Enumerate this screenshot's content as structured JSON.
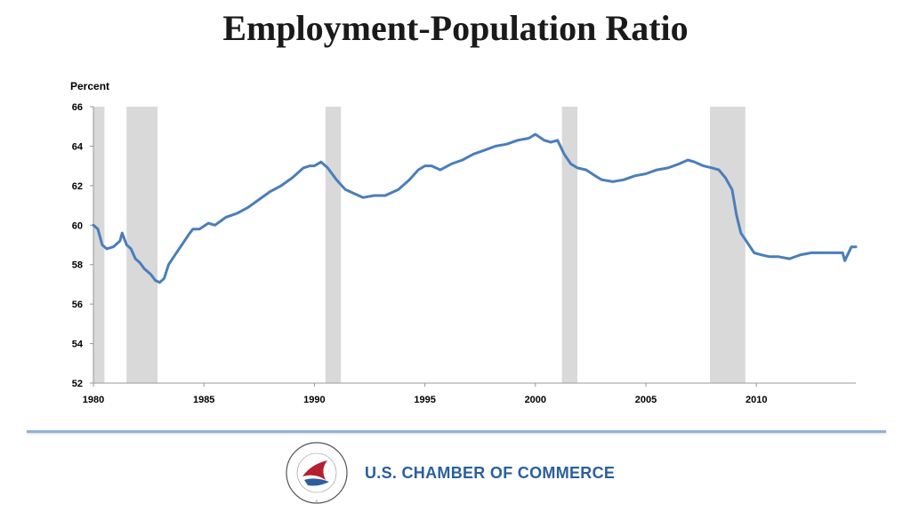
{
  "title": "Employment-Population Ratio",
  "footer": {
    "brand": "U.S. CHAMBER OF COMMERCE",
    "seal_text": "THE SPIRIT OF ENTERPRISE · U.S. CHAMBER OF COMMERCE"
  },
  "colors": {
    "line": "#4a7ebb",
    "recession": "#d9d9d9",
    "brand": "#2a5f9e",
    "divider": "#8fb3d9"
  },
  "chart_data": {
    "type": "line",
    "title": "Employment-Population Ratio",
    "ylabel": "Percent",
    "xlabel": "",
    "xlim": [
      1980,
      2014.5
    ],
    "ylim": [
      52,
      66
    ],
    "xticks": [
      1980,
      1985,
      1990,
      1995,
      2000,
      2005,
      2010
    ],
    "yticks": [
      52,
      54,
      56,
      58,
      60,
      62,
      64,
      66
    ],
    "recessions": [
      [
        1980.0,
        1980.5
      ],
      [
        1981.5,
        1982.9
      ],
      [
        1990.5,
        1991.2
      ],
      [
        2001.2,
        2001.9
      ],
      [
        2007.9,
        2009.5
      ]
    ],
    "series": [
      {
        "name": "Employment-Population Ratio",
        "x": [
          1980.0,
          1980.2,
          1980.4,
          1980.6,
          1980.9,
          1981.2,
          1981.3,
          1981.5,
          1981.7,
          1981.9,
          1982.1,
          1982.3,
          1982.6,
          1982.8,
          1983.0,
          1983.2,
          1983.4,
          1983.7,
          1984.0,
          1984.3,
          1984.5,
          1984.8,
          1985.2,
          1985.5,
          1986.0,
          1986.5,
          1987.0,
          1987.5,
          1988.0,
          1988.5,
          1989.0,
          1989.5,
          1989.8,
          1990.0,
          1990.3,
          1990.6,
          1991.0,
          1991.4,
          1991.8,
          1992.2,
          1992.7,
          1993.2,
          1993.8,
          1994.3,
          1994.7,
          1995.0,
          1995.3,
          1995.7,
          1996.2,
          1996.7,
          1997.2,
          1997.7,
          1998.2,
          1998.7,
          1999.2,
          1999.7,
          2000.0,
          2000.4,
          2000.7,
          2001.0,
          2001.3,
          2001.6,
          2001.9,
          2002.3,
          2002.7,
          2003.0,
          2003.5,
          2004.0,
          2004.5,
          2005.0,
          2005.5,
          2006.0,
          2006.5,
          2006.9,
          2007.2,
          2007.6,
          2008.0,
          2008.3,
          2008.6,
          2008.9,
          2009.1,
          2009.3,
          2009.6,
          2009.9,
          2010.2,
          2010.6,
          2011.0,
          2011.5,
          2012.0,
          2012.5,
          2013.0,
          2013.5,
          2013.9,
          2014.0,
          2014.3,
          2014.5
        ],
        "values": [
          60.0,
          59.8,
          59.0,
          58.8,
          58.9,
          59.2,
          59.6,
          59.0,
          58.8,
          58.3,
          58.1,
          57.8,
          57.5,
          57.2,
          57.1,
          57.3,
          58.0,
          58.5,
          59.0,
          59.5,
          59.8,
          59.8,
          60.1,
          60.0,
          60.4,
          60.6,
          60.9,
          61.3,
          61.7,
          62.0,
          62.4,
          62.9,
          63.0,
          63.0,
          63.2,
          62.9,
          62.3,
          61.8,
          61.6,
          61.4,
          61.5,
          61.5,
          61.8,
          62.3,
          62.8,
          63.0,
          63.0,
          62.8,
          63.1,
          63.3,
          63.6,
          63.8,
          64.0,
          64.1,
          64.3,
          64.4,
          64.6,
          64.3,
          64.2,
          64.3,
          63.6,
          63.1,
          62.9,
          62.8,
          62.5,
          62.3,
          62.2,
          62.3,
          62.5,
          62.6,
          62.8,
          62.9,
          63.1,
          63.3,
          63.2,
          63.0,
          62.9,
          62.8,
          62.4,
          61.8,
          60.5,
          59.6,
          59.1,
          58.6,
          58.5,
          58.4,
          58.4,
          58.3,
          58.5,
          58.6,
          58.6,
          58.6,
          58.6,
          58.2,
          58.9,
          58.9
        ]
      }
    ]
  }
}
